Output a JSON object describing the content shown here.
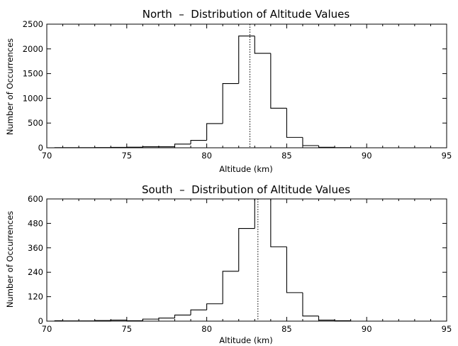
{
  "chart_data": [
    {
      "type": "bar",
      "title": "North  –  Distribution of Altitude Values",
      "xlabel": "Altitude (km)",
      "ylabel": "Number of Occurrences",
      "xlim": [
        70,
        95
      ],
      "ylim": [
        0,
        2500
      ],
      "xticks": [
        "70",
        "75",
        "80",
        "85",
        "90",
        "95"
      ],
      "yticks": [
        "0",
        "500",
        "1000",
        "1500",
        "2000",
        "2500"
      ],
      "bin_edges": [
        70.5,
        71,
        72,
        73,
        74,
        75,
        76,
        77,
        78,
        79,
        80,
        81,
        82,
        83,
        84,
        85,
        86,
        87,
        88,
        89
      ],
      "counts": [
        3,
        3,
        3,
        5,
        8,
        12,
        20,
        20,
        75,
        150,
        490,
        1300,
        2260,
        1910,
        800,
        210,
        45,
        10,
        3
      ],
      "median_line": 82.7,
      "grid": false
    },
    {
      "type": "bar",
      "title": "South  –  Distribution of Altitude Values",
      "xlabel": "Altitude (km)",
      "ylabel": "Number of Occurrences",
      "xlim": [
        70,
        95
      ],
      "ylim": [
        0,
        600
      ],
      "xticks": [
        "70",
        "75",
        "80",
        "85",
        "90",
        "95"
      ],
      "yticks": [
        "0",
        "120",
        "240",
        "360",
        "480",
        "600"
      ],
      "bin_edges": [
        70.5,
        71,
        72,
        73,
        74,
        75,
        76,
        77,
        78,
        79,
        80,
        81,
        82,
        83,
        84,
        85,
        86,
        87,
        88,
        89
      ],
      "counts": [
        2,
        1,
        1,
        3,
        5,
        2,
        10,
        15,
        30,
        55,
        85,
        245,
        455,
        600,
        365,
        140,
        25,
        5,
        2
      ],
      "median_line": 83.2,
      "grid": false
    }
  ]
}
